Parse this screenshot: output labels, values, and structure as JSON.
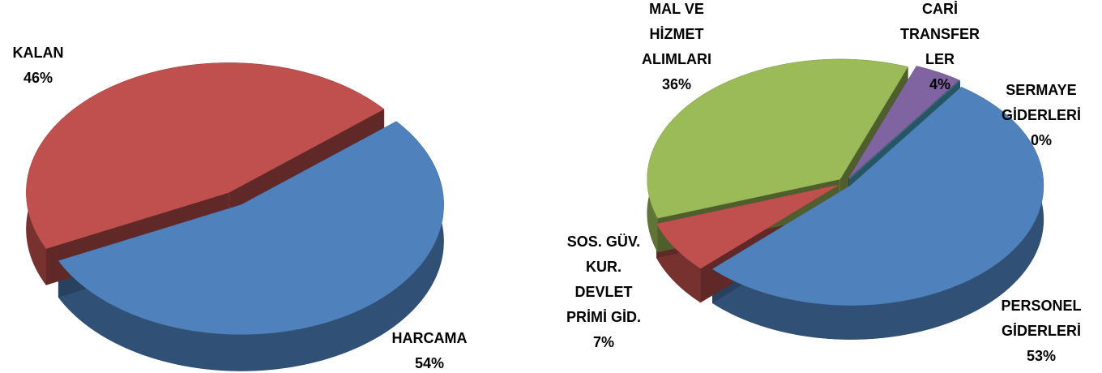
{
  "chart_data": [
    {
      "type": "pie",
      "categories": [
        "HARCAMA",
        "KALAN"
      ],
      "values": [
        54,
        46
      ],
      "value_labels": [
        "54%",
        "46%"
      ],
      "colors": [
        "#4f81bd",
        "#c0504d"
      ]
    },
    {
      "type": "pie",
      "categories": [
        "PERSONEL\nGİDERLERİ",
        "SOS. GÜV.\nKUR.\nDEVLET\nPRİMİ GİD.",
        "MAL VE\nHİZMET\nALIMLARI",
        "CARİ\nTRANSFER\nLER",
        "SERMAYE\nGİDERLERİ"
      ],
      "values": [
        53,
        7,
        36,
        4,
        0
      ],
      "value_labels": [
        "53%",
        "7%",
        "36%",
        "4%",
        "0%"
      ],
      "colors": [
        "#4f81bd",
        "#c0504d",
        "#9bbb59",
        "#8064a2",
        "#4bacc6"
      ]
    }
  ]
}
